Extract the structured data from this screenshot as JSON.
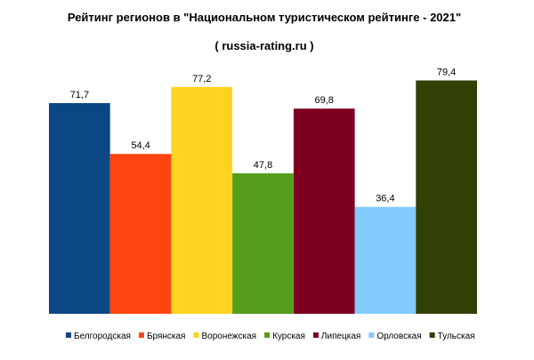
{
  "chart_data": {
    "type": "bar",
    "title": "Рейтинг регионов в \"Национальном туристическом рейтинге  -  2021\"",
    "subtitle": "( russia-rating.ru )",
    "xlabel": "",
    "ylabel": "",
    "ylim": [
      0,
      85
    ],
    "grid": false,
    "legend_position": "bottom",
    "categories": [
      "Белгородская",
      "Брянская",
      "Воронежская",
      "Курская",
      "Липецкая",
      "Орловская",
      "Тульская"
    ],
    "value_labels": [
      "71,7",
      "54,4",
      "77,2",
      "47,8",
      "69,8",
      "36,4",
      "79,4"
    ],
    "values": [
      71.7,
      54.4,
      77.2,
      47.8,
      69.8,
      36.4,
      79.4
    ],
    "colors": [
      "#0b4784",
      "#ff4412",
      "#ffd320",
      "#579d1c",
      "#7e0021",
      "#83caff",
      "#314004"
    ]
  }
}
